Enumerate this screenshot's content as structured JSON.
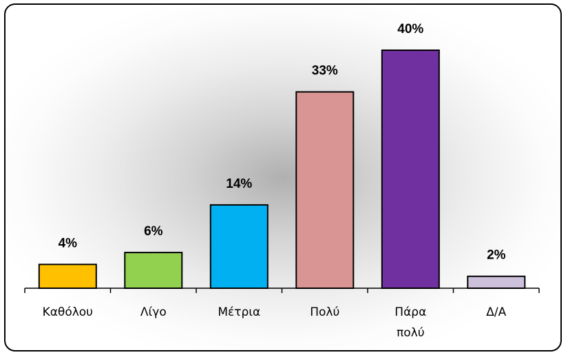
{
  "chart_data": {
    "type": "bar",
    "categories": [
      [
        "Καθόλου"
      ],
      [
        "Λίγο"
      ],
      [
        "Μέτρια"
      ],
      [
        "Πολύ"
      ],
      [
        "Πάρα",
        "πολύ"
      ],
      [
        "Δ/Α"
      ]
    ],
    "values": [
      4,
      6,
      14,
      33,
      40,
      2
    ],
    "value_labels": [
      "4%",
      "6%",
      "14%",
      "33%",
      "40%",
      "2%"
    ],
    "colors": [
      "#FFC000",
      "#92D050",
      "#00B0F0",
      "#D99594",
      "#7030A0",
      "#CCC0DA"
    ],
    "ylim": [
      0,
      40
    ],
    "grid": false,
    "legend": "none"
  }
}
